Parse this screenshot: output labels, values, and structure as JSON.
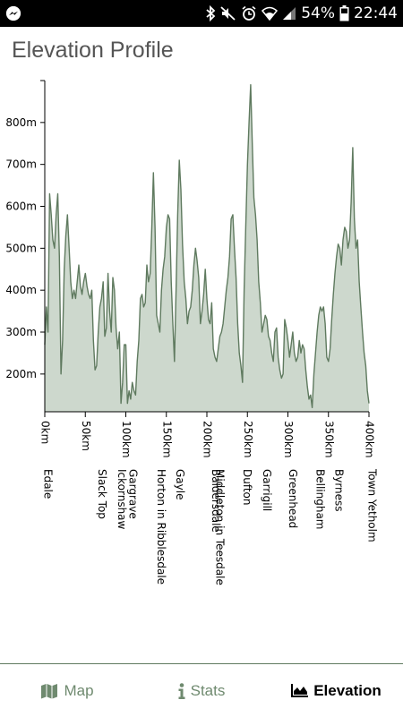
{
  "status_bar": {
    "battery": "54%",
    "time": "22:44",
    "icons": [
      "messenger-icon",
      "bluetooth-icon",
      "mute-icon",
      "alarm-icon",
      "wifi-icon",
      "signal-icon",
      "battery-icon"
    ]
  },
  "header": {
    "title": "Elevation Profile"
  },
  "colors": {
    "fill": "#cdd8cd",
    "stroke": "#5f7a5f",
    "nav_inactive": "#6f8a6f",
    "nav_active": "#000000"
  },
  "chart_data": {
    "type": "area",
    "x_unit": "km",
    "xlim": [
      0,
      400
    ],
    "ylim": [
      110,
      900
    ],
    "x_ticks": [
      0,
      50,
      100,
      150,
      200,
      250,
      300,
      350,
      400
    ],
    "x_tick_labels": [
      "0km",
      "50km",
      "100km",
      "150km",
      "200km",
      "250km",
      "300km",
      "350km",
      "400km"
    ],
    "y_ticks": [
      200,
      300,
      400,
      500,
      600,
      700,
      800
    ],
    "y_tick_labels": [
      "200m",
      "300m",
      "400m",
      "500m",
      "600m",
      "700m",
      "800m"
    ],
    "places": [
      {
        "name": "Edale",
        "km": 0
      },
      {
        "name": "Slack Top",
        "km": 67
      },
      {
        "name": "Ickornshaw",
        "km": 91
      },
      {
        "name": "Gargrave",
        "km": 105
      },
      {
        "name": "Horton in Ribblesdale",
        "km": 140
      },
      {
        "name": "Gayle",
        "km": 163
      },
      {
        "name": "Baldersdale",
        "km": 207
      },
      {
        "name": "Middleton in Teesdale",
        "km": 212
      },
      {
        "name": "Dufton",
        "km": 246
      },
      {
        "name": "Garrigill",
        "km": 270
      },
      {
        "name": "Greenhead",
        "km": 302
      },
      {
        "name": "Bellingham",
        "km": 336
      },
      {
        "name": "Byrness",
        "km": 359
      },
      {
        "name": "Town Yetholm",
        "km": 400
      }
    ],
    "series": [
      {
        "x": [
          0,
          2,
          4,
          6,
          8,
          10,
          12,
          14,
          16,
          18,
          20,
          22,
          24,
          26,
          28,
          30,
          32,
          34,
          36,
          38,
          40,
          42,
          44,
          46,
          48,
          50,
          52,
          54,
          56,
          58,
          60,
          62,
          64,
          66,
          68,
          70,
          72,
          74,
          76,
          78,
          80,
          82,
          84,
          86,
          88,
          90,
          92,
          94,
          96,
          98,
          100,
          102,
          104,
          106,
          108,
          110,
          112,
          114,
          116,
          118,
          120,
          122,
          124,
          126,
          128,
          130,
          132,
          134,
          136,
          138,
          140,
          142,
          144,
          146,
          148,
          150,
          152,
          154,
          156,
          158,
          160,
          162,
          164,
          166,
          168,
          170,
          172,
          174,
          176,
          178,
          180,
          182,
          184,
          186,
          188,
          190,
          192,
          194,
          196,
          198,
          200,
          202,
          204,
          206,
          208,
          210,
          212,
          214,
          216,
          218,
          220,
          222,
          224,
          226,
          228,
          230,
          232,
          234,
          236,
          238,
          240,
          242,
          244,
          246,
          248,
          250,
          252,
          254,
          256,
          258,
          260,
          262,
          264,
          266,
          268,
          270,
          272,
          274,
          276,
          278,
          280,
          282,
          284,
          286,
          288,
          290,
          292,
          294,
          296,
          298,
          300,
          302,
          304,
          306,
          308,
          310,
          312,
          314,
          316,
          318,
          320,
          322,
          324,
          326,
          328,
          330,
          332,
          334,
          336,
          338,
          340,
          342,
          344,
          346,
          348,
          350,
          352,
          354,
          356,
          358,
          360,
          362,
          364,
          366,
          368,
          370,
          372,
          374,
          376,
          378,
          380,
          382,
          384,
          386,
          388,
          390,
          392,
          394,
          396,
          398,
          400
        ],
        "y": [
          270,
          360,
          300,
          630,
          580,
          520,
          500,
          580,
          630,
          480,
          200,
          280,
          450,
          530,
          580,
          500,
          420,
          380,
          400,
          380,
          420,
          460,
          410,
          390,
          420,
          440,
          410,
          390,
          380,
          400,
          280,
          210,
          220,
          300,
          360,
          380,
          420,
          290,
          310,
          440,
          350,
          300,
          430,
          400,
          310,
          260,
          300,
          130,
          180,
          270,
          270,
          130,
          160,
          140,
          180,
          160,
          150,
          230,
          280,
          380,
          390,
          360,
          370,
          460,
          420,
          440,
          550,
          680,
          550,
          340,
          320,
          300,
          400,
          450,
          480,
          550,
          580,
          570,
          420,
          320,
          230,
          400,
          580,
          710,
          640,
          510,
          420,
          380,
          320,
          350,
          360,
          400,
          460,
          500,
          470,
          430,
          320,
          350,
          390,
          450,
          380,
          330,
          320,
          370,
          260,
          240,
          230,
          260,
          290,
          300,
          320,
          360,
          400,
          430,
          480,
          570,
          580,
          500,
          430,
          320,
          250,
          220,
          180,
          400,
          550,
          700,
          800,
          890,
          750,
          620,
          580,
          520,
          420,
          370,
          300,
          320,
          340,
          330,
          290,
          280,
          250,
          230,
          300,
          310,
          240,
          210,
          190,
          200,
          330,
          310,
          280,
          240,
          270,
          300,
          250,
          230,
          240,
          280,
          250,
          270,
          260,
          210,
          170,
          140,
          150,
          120,
          200,
          250,
          300,
          340,
          360,
          350,
          360,
          320,
          240,
          230,
          260,
          330,
          390,
          440,
          480,
          510,
          500,
          460,
          520,
          550,
          540,
          500,
          520,
          610,
          740,
          570,
          500,
          520,
          420,
          360,
          300,
          250,
          220,
          160,
          130
        ]
      }
    ]
  },
  "bottom_nav": {
    "items": [
      {
        "label": "Map",
        "icon": "map-icon"
      },
      {
        "label": "Stats",
        "icon": "info-icon"
      },
      {
        "label": "Elevation",
        "icon": "area-chart-icon"
      }
    ],
    "active_index": 2
  }
}
